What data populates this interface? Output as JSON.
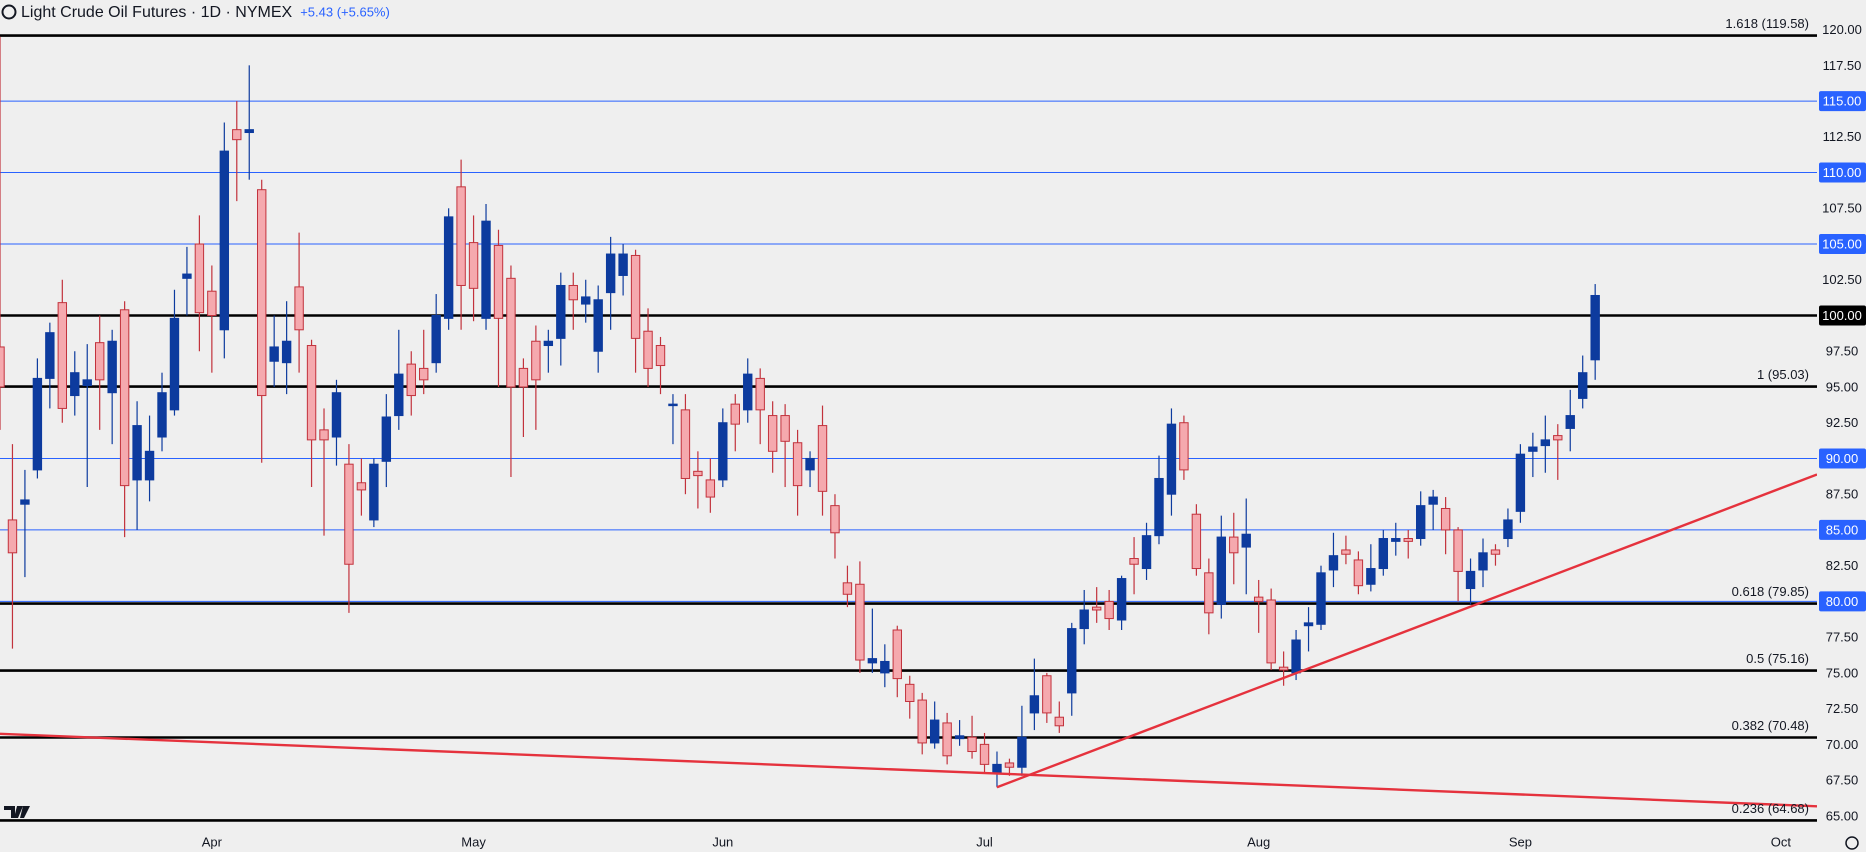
{
  "chart_data": {
    "type": "candlestick",
    "title": "Light Crude Oil Futures · 1D · NYMEX",
    "change": "+5.43 (+5.65%)",
    "open": [
      97.8,
      85.7,
      86.8,
      89.2,
      95.6,
      100.9,
      94.4,
      95.1,
      98.1,
      94.6,
      100.4,
      88.5,
      88.5,
      91.5,
      93.4,
      102.6,
      105,
      101.7,
      99,
      113,
      112.8,
      108.8,
      96.8,
      96.7,
      102,
      97.9,
      92,
      91.5,
      89.6,
      88.3,
      85.7,
      89.8,
      93,
      96.6,
      96.3,
      96.7,
      99.8,
      109,
      105.1,
      99.8,
      104.9,
      102.6,
      96.3,
      98.2,
      97.9,
      98.4,
      102.1,
      100.8,
      97.5,
      101.6,
      102.8,
      104.2,
      98.9,
      97.9,
      93.7,
      93.4,
      89.1,
      88.5,
      88.5,
      93.8,
      93.4,
      95.6,
      93,
      93,
      91.1,
      89.2,
      92.3,
      86.7,
      81.3,
      81.2,
      75.7,
      75,
      78,
      74.2,
      73.1,
      70.1,
      71.5,
      70.4,
      70.5,
      70,
      68,
      68.7,
      68.4,
      72.2,
      74.8,
      71.9,
      73.6,
      78.1,
      79.6,
      80,
      78.7,
      83,
      82.3,
      84.6,
      87.5,
      92.5,
      86.1,
      82,
      79.8,
      84.5,
      83.8,
      80.3,
      80.1,
      75.4,
      75,
      78.3,
      78.4,
      82.2,
      83.6,
      82.9,
      81.2,
      82.3,
      84.2,
      84.4,
      84.4,
      86.8,
      86.5,
      85,
      80.9,
      82.2,
      83.6,
      84.4,
      86.3,
      90.5,
      90.9,
      91.6,
      92.1,
      94.2,
      96.9
    ],
    "high": [
      119.5,
      91,
      89.2,
      97,
      99.5,
      102.5,
      97.5,
      98,
      100,
      99,
      101,
      94,
      93,
      96,
      101.8,
      104.8,
      107,
      103.5,
      113.5,
      115,
      117.5,
      109.5,
      100,
      101,
      105.8,
      98.3,
      93.5,
      95.5,
      91,
      90,
      90,
      94.5,
      99,
      97.5,
      99,
      101.5,
      107.5,
      110.9,
      107,
      107.8,
      106,
      103.5,
      97,
      99.3,
      99,
      103,
      103,
      102.5,
      102.1,
      105.5,
      105,
      104.6,
      100.5,
      98.5,
      94.5,
      94.5,
      90.5,
      90,
      93.5,
      94.5,
      97,
      96.3,
      94,
      93.8,
      92,
      90.5,
      93.7,
      87.5,
      82.5,
      82.8,
      79.5,
      77,
      78.3,
      74.8,
      73.6,
      73,
      72.2,
      71.7,
      72,
      70.8,
      69.5,
      69,
      72.7,
      76,
      75,
      73,
      78.5,
      80.8,
      81,
      80.8,
      81.8,
      84.5,
      85.5,
      90.2,
      93.5,
      93,
      86.8,
      83,
      86,
      86.2,
      87.2,
      81.5,
      80.9,
      76.5,
      78,
      79.6,
      82.5,
      84.8,
      84.6,
      83.5,
      84,
      85,
      85.5,
      85,
      87.7,
      87.8,
      87.3,
      85.2,
      83,
      84.4,
      84,
      86.5,
      91,
      91.8,
      93,
      92.4,
      94.8,
      97.2,
      102.2
    ],
    "low": [
      92,
      76.7,
      81.7,
      88.6,
      93.5,
      92.5,
      93,
      88,
      92,
      91,
      84.5,
      85,
      87,
      90.5,
      93,
      100,
      97.5,
      96,
      97,
      108,
      109.5,
      89.7,
      95,
      94.5,
      96,
      88,
      84.6,
      89.5,
      79.2,
      86,
      85.2,
      88,
      92,
      93,
      94.5,
      96,
      99,
      99,
      99.6,
      99,
      95,
      88.7,
      91.5,
      92,
      96,
      96.5,
      99,
      99.5,
      96,
      99,
      101.4,
      96,
      95,
      94.5,
      91,
      87.5,
      86.5,
      86.2,
      88,
      90.5,
      92.5,
      91,
      89,
      88,
      86,
      88,
      86,
      83,
      79.6,
      75,
      75,
      74,
      73.3,
      71.8,
      69.3,
      69.7,
      68.6,
      69.9,
      69,
      68,
      67,
      67.8,
      67.8,
      71,
      71.5,
      70.8,
      72,
      77,
      78.5,
      78,
      78,
      80.5,
      81.5,
      84,
      86,
      88.5,
      81.8,
      77.7,
      78.8,
      81.2,
      80.5,
      77.8,
      75.2,
      74.1,
      74.5,
      76.5,
      78,
      81,
      82.6,
      80.5,
      80.7,
      81.8,
      83.2,
      83,
      83.9,
      85,
      83.3,
      80,
      79.8,
      81,
      82.5,
      83.8,
      85.5,
      88.7,
      89,
      88.5,
      90.5,
      93.5,
      95.5
    ],
    "close": [
      95,
      83.4,
      87.1,
      95.6,
      98.8,
      93.5,
      96,
      95.5,
      95.5,
      98.2,
      88.1,
      92.3,
      90.5,
      94.6,
      99.8,
      102.9,
      100.2,
      100,
      111.5,
      112.3,
      113,
      94.4,
      97.8,
      98.2,
      99,
      91.3,
      91.3,
      94.6,
      82.6,
      87.8,
      89.6,
      92.9,
      95.9,
      94.4,
      95.5,
      100,
      106.9,
      102.1,
      101.9,
      106.6,
      99.8,
      95,
      95,
      95.5,
      98.2,
      102.1,
      101.1,
      101.3,
      101.1,
      104.3,
      104.3,
      98.4,
      96.3,
      96.5,
      93.8,
      88.6,
      88.8,
      87.3,
      92.5,
      92.4,
      95.9,
      93.4,
      90.5,
      91.2,
      88.1,
      90,
      87.7,
      84.8,
      80.5,
      75.9,
      76,
      75.8,
      74.6,
      73,
      70.1,
      71.7,
      69.2,
      70.6,
      69.5,
      68.6,
      68.6,
      68.4,
      70.5,
      73.4,
      72.2,
      71.3,
      78.1,
      79.4,
      79.4,
      78.8,
      81.6,
      82.6,
      84.6,
      88.6,
      92.4,
      89.2,
      82.3,
      79.2,
      84.5,
      83.4,
      84.7,
      80,
      75.7,
      75.2,
      77.3,
      78.5,
      82,
      83.2,
      83.3,
      81.1,
      82.3,
      84.4,
      84.4,
      84.2,
      86.7,
      87.3,
      85,
      82.1,
      82.1,
      83.4,
      83.3,
      85.7,
      90.3,
      90.8,
      91.3,
      91.3,
      93,
      96,
      101.4
    ],
    "up_color": "#0d3b9e",
    "down_color": "#f5a9ae",
    "down_line_color": "#c2323c",
    "xlim": [
      0,
      145.8
    ],
    "xticks": [
      {
        "value": 17,
        "label": "Apr"
      },
      {
        "value": 38,
        "label": "May"
      },
      {
        "value": 58,
        "label": "Jun"
      },
      {
        "value": 79,
        "label": "Jul"
      },
      {
        "value": 101,
        "label": "Aug"
      },
      {
        "value": 122,
        "label": "Sep"
      },
      {
        "value": 142.9,
        "label": "Oct"
      }
    ],
    "ylim": [
      64.08,
      122.07
    ],
    "yticks": [
      {
        "value": 65,
        "label": "65.00"
      },
      {
        "value": 67.5,
        "label": "67.50"
      },
      {
        "value": 70,
        "label": "70.00"
      },
      {
        "value": 72.5,
        "label": "72.50"
      },
      {
        "value": 75,
        "label": "75.00"
      },
      {
        "value": 77.5,
        "label": "77.50"
      },
      {
        "value": 80,
        "label": "80.00"
      },
      {
        "value": 82.5,
        "label": "82.50"
      },
      {
        "value": 85,
        "label": "85.00"
      },
      {
        "value": 87.5,
        "label": "87.50"
      },
      {
        "value": 90,
        "label": "90.00"
      },
      {
        "value": 92.5,
        "label": "92.50"
      },
      {
        "value": 95,
        "label": "95.00"
      },
      {
        "value": 97.5,
        "label": "97.50"
      },
      {
        "value": 100,
        "label": "100.00"
      },
      {
        "value": 102.5,
        "label": "102.50"
      },
      {
        "value": 105,
        "label": "105.00"
      },
      {
        "value": 107.5,
        "label": "107.50"
      },
      {
        "value": 110,
        "label": "110.00"
      },
      {
        "value": 112.5,
        "label": "112.50"
      },
      {
        "value": 115,
        "label": "115.00"
      },
      {
        "value": 117.5,
        "label": "117.50"
      },
      {
        "value": 120,
        "label": "120.00"
      }
    ],
    "levels": [
      {
        "value": 119.58,
        "label": "1.618 (119.58)",
        "color": "#000000"
      },
      {
        "value": 115,
        "color": "#2962ff"
      },
      {
        "value": 110,
        "color": "#2962ff"
      },
      {
        "value": 105,
        "color": "#2962ff"
      },
      {
        "value": 100,
        "color": "#000000"
      },
      {
        "value": 95.03,
        "label": "1 (95.03)",
        "color": "#000000"
      },
      {
        "value": 90,
        "color": "#2962ff"
      },
      {
        "value": 85,
        "color": "#2962ff"
      },
      {
        "value": 80,
        "color": "#2962ff"
      },
      {
        "value": 79.85,
        "label": "0.618 (79.85)",
        "color": "#000000"
      },
      {
        "value": 75.16,
        "label": "0.5 (75.16)",
        "color": "#000000"
      },
      {
        "value": 70.48,
        "label": "0.382 (70.48)",
        "color": "#000000"
      },
      {
        "value": 64.68,
        "label": "0.236 (64.68)",
        "color": "#000000"
      }
    ],
    "trendlines": [
      {
        "points": [
          [
            0,
            70.74
          ],
          [
            145.8,
            65.67
          ]
        ],
        "color": "#e5323d"
      },
      {
        "points": [
          [
            80,
            67.0
          ],
          [
            145.8,
            88.88
          ]
        ],
        "color": "#e5323d"
      }
    ]
  }
}
